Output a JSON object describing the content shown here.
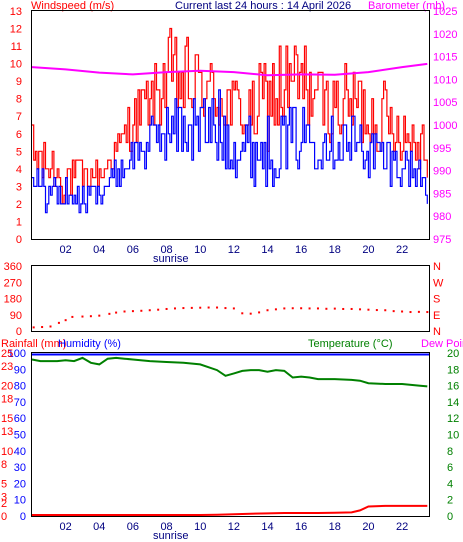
{
  "header": {
    "left_label": "Windspeed (m/s)",
    "center_label": "Current last 24 hours : 14 April 2026",
    "right_label": "Barometer (mb)"
  },
  "colors": {
    "wind_text": "#ff0000",
    "wind_gust": "#ff0000",
    "wind_avg": "#0000ff",
    "barometer": "#ff00ff",
    "direction": "#ff0000",
    "rain": "#ff0000",
    "humidity": "#0000ff",
    "temperature": "#008000",
    "dewpoint": "#ff00ff",
    "title_text": "#000080",
    "frame": "#000000"
  },
  "chart_data": [
    {
      "type": "line",
      "name": "wind-barometer",
      "x_tick_labels": [
        "02",
        "04",
        "06",
        "08",
        "10",
        "12",
        "14",
        "16",
        "18",
        "20",
        "22"
      ],
      "x_tick_hours": [
        2,
        4,
        6,
        8,
        10,
        12,
        14,
        16,
        18,
        20,
        22
      ],
      "x_range_hours": [
        0,
        23.6
      ],
      "annotation": "sunrise",
      "annotation_hour": 8.0,
      "y_left": {
        "ticks": [
          0,
          1,
          2,
          3,
          4,
          5,
          6,
          7,
          8,
          9,
          10,
          11,
          12,
          13
        ],
        "range": [
          0,
          13
        ]
      },
      "y_right": {
        "ticks": [
          975,
          980,
          985,
          990,
          995,
          1000,
          1005,
          1010,
          1015,
          1020,
          1025
        ],
        "range": [
          975,
          1025
        ]
      },
      "series": [
        {
          "key": "gust",
          "kind": "hourly-envelope",
          "hours": [
            0,
            1,
            2,
            3,
            4,
            5,
            6,
            7,
            8,
            9,
            10,
            11,
            12,
            13,
            14,
            15,
            16,
            17,
            18,
            19,
            20,
            21,
            22,
            23,
            23.5
          ],
          "low": [
            3.0,
            2.5,
            2.0,
            2.5,
            3.0,
            4.0,
            5.0,
            6.0,
            6.5,
            6.0,
            6.5,
            6.0,
            5.5,
            5.0,
            5.0,
            5.5,
            6.0,
            6.0,
            5.5,
            5.0,
            5.0,
            4.5,
            4.5,
            4.0,
            3.5
          ],
          "high": [
            6.5,
            5.5,
            5.0,
            4.5,
            4.5,
            6.0,
            8.5,
            9.5,
            12.0,
            11.5,
            11.0,
            10.0,
            9.5,
            9.0,
            11.0,
            11.5,
            12.0,
            10.0,
            9.5,
            10.5,
            9.5,
            9.0,
            8.0,
            7.5,
            7.0
          ]
        },
        {
          "key": "average",
          "kind": "hourly-envelope",
          "hours": [
            0,
            1,
            2,
            3,
            4,
            5,
            6,
            7,
            8,
            9,
            10,
            11,
            12,
            13,
            14,
            15,
            16,
            17,
            18,
            19,
            20,
            21,
            22,
            23,
            23.5
          ],
          "low": [
            2.5,
            1.5,
            1.5,
            1.5,
            2.0,
            3.0,
            3.5,
            4.0,
            4.5,
            4.5,
            4.0,
            4.0,
            3.5,
            3.0,
            3.0,
            3.5,
            4.0,
            4.0,
            4.0,
            3.5,
            3.5,
            3.0,
            3.0,
            2.5,
            2.0
          ],
          "high": [
            4.0,
            4.0,
            3.5,
            3.0,
            3.5,
            4.5,
            6.0,
            7.0,
            8.0,
            8.5,
            8.5,
            8.5,
            7.5,
            7.0,
            7.0,
            7.5,
            8.0,
            7.5,
            7.0,
            7.5,
            6.5,
            6.0,
            5.5,
            5.0,
            4.5
          ]
        },
        {
          "key": "barometer",
          "axis": "right",
          "hours": [
            0,
            2,
            4,
            6,
            8,
            10,
            12,
            14,
            16,
            18,
            20,
            22,
            23.5
          ],
          "values": [
            1012.7,
            1012.2,
            1011.5,
            1011.1,
            1011.6,
            1011.9,
            1011.6,
            1010.9,
            1011.1,
            1011.0,
            1011.6,
            1012.7,
            1013.4
          ]
        }
      ]
    },
    {
      "type": "scatter",
      "name": "wind-direction",
      "y_left": {
        "ticks": [
          0,
          90,
          180,
          270,
          360
        ],
        "range": [
          0,
          360
        ]
      },
      "y_right_labels": [
        "N",
        "E",
        "S",
        "W",
        "N"
      ],
      "points": [
        [
          0.1,
          20
        ],
        [
          0.6,
          22
        ],
        [
          1.1,
          25
        ],
        [
          1.6,
          45
        ],
        [
          2.0,
          60
        ],
        [
          2.4,
          78
        ],
        [
          3.0,
          80
        ],
        [
          3.5,
          82
        ],
        [
          4.0,
          85
        ],
        [
          4.6,
          95
        ],
        [
          5.0,
          102
        ],
        [
          5.5,
          108
        ],
        [
          6.0,
          110
        ],
        [
          6.5,
          112
        ],
        [
          7.0,
          115
        ],
        [
          7.5,
          118
        ],
        [
          8.0,
          122
        ],
        [
          8.5,
          125
        ],
        [
          9.0,
          127
        ],
        [
          9.5,
          128
        ],
        [
          10.0,
          129
        ],
        [
          10.5,
          130
        ],
        [
          11.0,
          130
        ],
        [
          11.5,
          127
        ],
        [
          12.0,
          125
        ],
        [
          12.5,
          98
        ],
        [
          13.0,
          96
        ],
        [
          13.5,
          103
        ],
        [
          14.0,
          115
        ],
        [
          14.5,
          120
        ],
        [
          15.0,
          125
        ],
        [
          15.5,
          126
        ],
        [
          16.0,
          126
        ],
        [
          16.5,
          125
        ],
        [
          17.0,
          125
        ],
        [
          17.5,
          123
        ],
        [
          18.0,
          124
        ],
        [
          18.5,
          122
        ],
        [
          19.0,
          122
        ],
        [
          19.5,
          120
        ],
        [
          20.0,
          118
        ],
        [
          20.5,
          116
        ],
        [
          21.0,
          115
        ],
        [
          21.5,
          110
        ],
        [
          22.0,
          108
        ],
        [
          22.5,
          105
        ],
        [
          23.0,
          106
        ],
        [
          23.5,
          105
        ]
      ]
    },
    {
      "type": "line",
      "name": "rain-humidity-temperature",
      "labels": {
        "left": "Rainfall (mm)",
        "left2": "Humidity (%)",
        "right": "Temperature (°C)",
        "right2": "Dew Point"
      },
      "annotation": "sunrise",
      "annotation_hour": 8.0,
      "y_left": {
        "ticks": [
          0,
          10,
          20,
          30,
          40,
          50,
          60,
          70,
          80,
          90,
          100
        ],
        "range": [
          0,
          100
        ]
      },
      "y_left_rain": {
        "ticks": [
          0,
          2,
          3,
          5,
          8,
          10,
          13,
          15,
          18,
          20,
          23,
          25
        ],
        "range": [
          0,
          25
        ]
      },
      "y_right": {
        "ticks": [
          0,
          2,
          4,
          6,
          8,
          10,
          12,
          14,
          16,
          18,
          20
        ],
        "range": [
          0,
          20
        ]
      },
      "series": [
        {
          "key": "humidity",
          "axis": "left",
          "hours": [
            0,
            23.6
          ],
          "values": [
            100,
            100
          ]
        },
        {
          "key": "temperature",
          "axis": "right",
          "hours": [
            0,
            0.5,
            1.0,
            1.5,
            2.0,
            2.5,
            3.0,
            3.5,
            4.0,
            4.5,
            5.0,
            5.5,
            6.0,
            7.0,
            8.0,
            9.0,
            10.0,
            11.0,
            11.5,
            12.0,
            12.5,
            13.0,
            13.5,
            14.0,
            14.5,
            15.0,
            15.5,
            16.0,
            16.5,
            17.0,
            18.0,
            19.0,
            19.5,
            20.0,
            21.0,
            22.0,
            23.0,
            23.5
          ],
          "values": [
            19.2,
            19.0,
            19.0,
            19.0,
            19.1,
            19.0,
            19.4,
            18.8,
            18.6,
            19.3,
            19.4,
            19.3,
            19.2,
            19.0,
            18.9,
            18.8,
            18.6,
            17.9,
            17.2,
            17.5,
            17.8,
            17.9,
            17.9,
            17.7,
            17.9,
            17.8,
            17.0,
            17.1,
            17.0,
            16.8,
            16.8,
            16.7,
            16.6,
            16.3,
            16.2,
            16.2,
            16.0,
            15.9
          ]
        },
        {
          "key": "rainfall",
          "axis": "left_rain",
          "hours": [
            0,
            10.0,
            11.0,
            12.0,
            13.0,
            14.0,
            15.0,
            16.0,
            17.0,
            18.0,
            19.0,
            19.5,
            20.0,
            21.0,
            22.0,
            23.0,
            23.5
          ],
          "values": [
            0,
            0,
            0.05,
            0.1,
            0.2,
            0.25,
            0.3,
            0.3,
            0.3,
            0.35,
            0.4,
            0.7,
            1.3,
            1.4,
            1.4,
            1.4,
            1.4
          ]
        }
      ]
    }
  ]
}
